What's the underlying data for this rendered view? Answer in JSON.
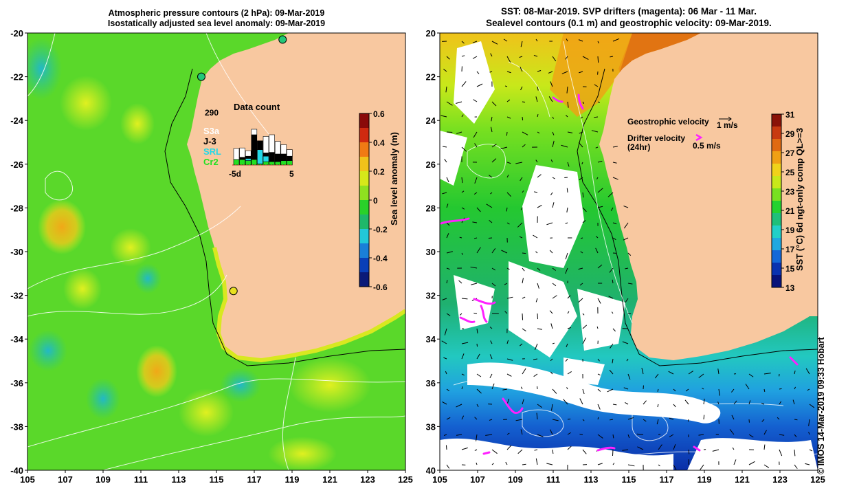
{
  "left_panel": {
    "title_line1": "Atmospheric pressure contours (2 hPa): 09-Mar-2019",
    "title_line2": "Isostatically adjusted sea level anomaly: 09-Mar-2019",
    "y_ticks": [
      "-20",
      "-22",
      "-24",
      "-26",
      "-28",
      "-30",
      "-32",
      "-34",
      "-36",
      "-38",
      "-40"
    ],
    "x_ticks": [
      "105",
      "107",
      "109",
      "111",
      "113",
      "115",
      "117",
      "119",
      "121",
      "123",
      "125"
    ],
    "colorbar": {
      "label": "Sea level anomaly (m)",
      "ticks": [
        "0.6",
        "0.4",
        "0.2",
        "0",
        "-0.2",
        "-0.4",
        "-0.6"
      ],
      "colors": [
        "#0b1a78",
        "#0a3fb8",
        "#1a7fd8",
        "#22c8d8",
        "#1fb86a",
        "#29d12a",
        "#8fe020",
        "#d6e81a",
        "#f0c21a",
        "#f07a14",
        "#d02a10",
        "#8a0a0a"
      ]
    },
    "data_count": {
      "title": "Data count",
      "max_label": "290",
      "x_labels": [
        "-5d",
        "5"
      ],
      "legend": [
        {
          "name": "S3a",
          "color": "#ffffff"
        },
        {
          "name": "J-3",
          "color": "#000000"
        },
        {
          "name": "SRL",
          "color": "#22d8e8"
        },
        {
          "name": "Cr2",
          "color": "#22e022"
        }
      ],
      "bars": [
        {
          "day": -5,
          "S3a": 0.2,
          "J-3": 0,
          "SRL": 0,
          "Cr2": 0.1
        },
        {
          "day": -4,
          "S3a": 0.17,
          "J-3": 0.04,
          "SRL": 0,
          "Cr2": 0.1
        },
        {
          "day": -3,
          "S3a": 0.1,
          "J-3": 0.04,
          "SRL": 0.04,
          "Cr2": 0.08
        },
        {
          "day": -2,
          "S3a": 0.1,
          "J-3": 0.45,
          "SRL": 0,
          "Cr2": 0.1
        },
        {
          "day": -1,
          "S3a": 0,
          "J-3": 0.16,
          "SRL": 0.26,
          "Cr2": 0.02
        },
        {
          "day": 0,
          "S3a": 0.3,
          "J-3": 0.06,
          "SRL": 0.1,
          "Cr2": 0.06
        },
        {
          "day": 1,
          "S3a": 0.32,
          "J-3": 0.17,
          "SRL": 0,
          "Cr2": 0.06
        },
        {
          "day": 2,
          "S3a": 0.23,
          "J-3": 0.14,
          "SRL": 0,
          "Cr2": 0.06
        },
        {
          "day": 3,
          "S3a": 0.17,
          "J-3": 0.12,
          "SRL": 0,
          "Cr2": 0.08
        },
        {
          "day": 4,
          "S3a": 0.12,
          "J-3": 0.08,
          "SRL": 0,
          "Cr2": 0.08
        }
      ]
    },
    "tide_gauges": [
      {
        "lon": 114.2,
        "lat": -22.0,
        "color": "#22c878"
      },
      {
        "lon": 118.5,
        "lat": -20.3,
        "color": "#22c878"
      },
      {
        "lon": 115.9,
        "lat": -31.8,
        "color": "#e8e020"
      }
    ]
  },
  "right_panel": {
    "title_line1": "SST: 08-Mar-2019. SVP drifters (magenta): 06 Mar - 11 Mar.",
    "title_line2": "Sealevel contours (0.1 m) and geostrophic velocity: 09-Mar-2019.",
    "y_ticks": [
      "-20",
      "-22",
      "-24",
      "-26",
      "-28",
      "-30",
      "-32",
      "-34",
      "-36",
      "-38",
      "-40"
    ],
    "x_ticks": [
      "105",
      "107",
      "109",
      "111",
      "113",
      "115",
      "117",
      "119",
      "121",
      "123",
      "125"
    ],
    "geostrophic_label": "Geostrophic velocity",
    "geostrophic_scale": "1 m/s",
    "drifter_label_line1": "Drifter velocity",
    "drifter_label_line2": "(24hr)",
    "drifter_scale": "0.5 m/s",
    "colorbar": {
      "label": "SST (°C) 6d ngt-only comp QL>=3",
      "ticks": [
        "31",
        "29",
        "27",
        "25",
        "23",
        "21",
        "19",
        "17",
        "15",
        "13"
      ],
      "colors": [
        "#08127a",
        "#0a32b0",
        "#1468d8",
        "#20a8e0",
        "#22d0c8",
        "#1fc07a",
        "#24d230",
        "#78e020",
        "#c8e81a",
        "#f0d21a",
        "#f0a014",
        "#e06a12",
        "#c83a10",
        "#8a1208"
      ]
    }
  },
  "credit": "© IMOS 14-Mar-2019 09:33 Hobart"
}
